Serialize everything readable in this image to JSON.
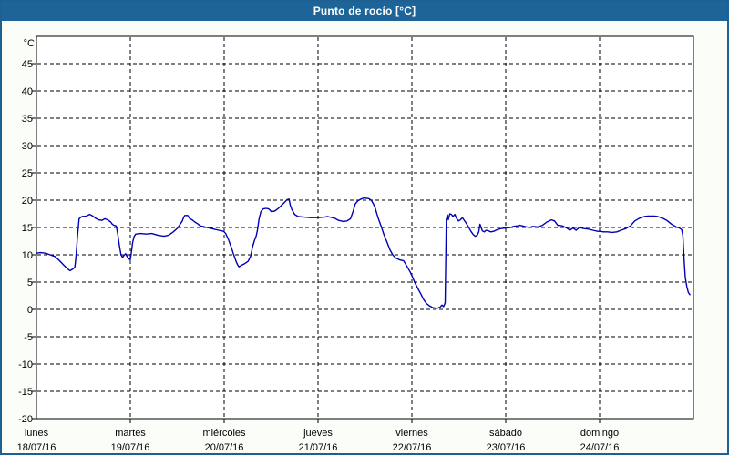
{
  "window": {
    "title": "Punto de rocío [°C]"
  },
  "colors": {
    "titlebar_bg": "#1d6598",
    "titlebar_text": "#ffffff",
    "window_border": "#1e6090",
    "window_bg": "#fbfdf9",
    "plot_bg": "#ffffff",
    "axis_color": "#000000",
    "grid_color": "#000000",
    "series_color": "#0000b4"
  },
  "chart_data": {
    "type": "line",
    "title": "Punto de rocío [°C]",
    "ylabel": "°C",
    "ylim": [
      -20,
      50
    ],
    "y_tick_step": 5,
    "y_tick_labels": [
      "45",
      "40",
      "35",
      "30",
      "25",
      "20",
      "15",
      "10",
      "5",
      "0",
      "-5",
      "-10",
      "-15",
      "-20"
    ],
    "grid": "dashed horizontal every 5°C, dashed vertical at each day boundary",
    "legend": "none",
    "x_axis": {
      "unit": "hours from lunes 18/07/16 00:00",
      "range": [
        0,
        168
      ],
      "hours_per_day": 24,
      "days": [
        {
          "name": "lunes",
          "date": "18/07/16"
        },
        {
          "name": "martes",
          "date": "19/07/16"
        },
        {
          "name": "miércoles",
          "date": "20/07/16"
        },
        {
          "name": "jueves",
          "date": "21/07/16"
        },
        {
          "name": "viernes",
          "date": "22/07/16"
        },
        {
          "name": "sábado",
          "date": "23/07/16"
        },
        {
          "name": "domingo",
          "date": "24/07/16"
        }
      ]
    },
    "series": [
      {
        "name": "Punto de rocío",
        "unit": "°C",
        "color": "#0000b4",
        "points": [
          [
            0,
            10.3
          ],
          [
            1,
            10.4
          ],
          [
            2.3,
            10.3
          ],
          [
            3.5,
            10.0
          ],
          [
            4.7,
            9.7
          ],
          [
            5.8,
            9.0
          ],
          [
            7,
            8.1
          ],
          [
            8.2,
            7.3
          ],
          [
            8.6,
            7.1
          ],
          [
            9.3,
            7.4
          ],
          [
            9.8,
            7.7
          ],
          [
            10.1,
            9.5
          ],
          [
            10.5,
            13.5
          ],
          [
            10.9,
            16.6
          ],
          [
            11.6,
            17.0
          ],
          [
            12.8,
            17.1
          ],
          [
            13.6,
            17.4
          ],
          [
            14.4,
            17.1
          ],
          [
            15.1,
            16.7
          ],
          [
            15.9,
            16.4
          ],
          [
            16.7,
            16.3
          ],
          [
            17.5,
            16.6
          ],
          [
            18.2,
            16.4
          ],
          [
            19,
            16.0
          ],
          [
            19.4,
            15.6
          ],
          [
            19.8,
            15.4
          ],
          [
            20.4,
            15.3
          ],
          [
            20.8,
            13.7
          ],
          [
            21.2,
            11.7
          ],
          [
            21.6,
            10.1
          ],
          [
            22,
            9.5
          ],
          [
            22.4,
            9.9
          ],
          [
            22.8,
            10.2
          ],
          [
            23.1,
            9.8
          ],
          [
            23.5,
            9.3
          ],
          [
            24,
            9.1
          ],
          [
            24.3,
            10.6
          ],
          [
            24.6,
            12.3
          ],
          [
            25,
            13.4
          ],
          [
            25.4,
            13.8
          ],
          [
            26.6,
            13.9
          ],
          [
            28,
            13.8
          ],
          [
            29.5,
            13.9
          ],
          [
            31,
            13.6
          ],
          [
            32.6,
            13.4
          ],
          [
            33.8,
            13.6
          ],
          [
            35,
            14.2
          ],
          [
            36.1,
            14.9
          ],
          [
            37.3,
            16.2
          ],
          [
            37.6,
            16.8
          ],
          [
            37.9,
            17.2
          ],
          [
            38.7,
            17.2
          ],
          [
            39.1,
            16.7
          ],
          [
            39.8,
            16.4
          ],
          [
            40.5,
            16.0
          ],
          [
            41.2,
            15.7
          ],
          [
            41.9,
            15.3
          ],
          [
            43.1,
            15.1
          ],
          [
            44.3,
            14.9
          ],
          [
            45.4,
            14.7
          ],
          [
            46.6,
            14.5
          ],
          [
            47.8,
            14.3
          ],
          [
            48,
            14.2
          ],
          [
            48.4,
            13.9
          ],
          [
            48.7,
            13.4
          ],
          [
            49.1,
            12.8
          ],
          [
            49.5,
            12.0
          ],
          [
            49.9,
            11.2
          ],
          [
            50.3,
            10.3
          ],
          [
            50.7,
            9.5
          ],
          [
            51.1,
            8.7
          ],
          [
            51.5,
            8.1
          ],
          [
            51.8,
            7.8
          ],
          [
            52.5,
            8.1
          ],
          [
            53.3,
            8.4
          ],
          [
            54.1,
            8.8
          ],
          [
            54.8,
            9.8
          ],
          [
            55.2,
            11.3
          ],
          [
            55.7,
            12.5
          ],
          [
            56.2,
            13.5
          ],
          [
            56.5,
            14.5
          ],
          [
            56.9,
            16.5
          ],
          [
            57.4,
            17.9
          ],
          [
            58,
            18.4
          ],
          [
            58.7,
            18.5
          ],
          [
            59.4,
            18.4
          ],
          [
            60.1,
            17.9
          ],
          [
            60.9,
            18.0
          ],
          [
            61.7,
            18.4
          ],
          [
            62.9,
            19.2
          ],
          [
            64.1,
            20.1
          ],
          [
            64.6,
            20.2
          ],
          [
            64.9,
            19.1
          ],
          [
            65.3,
            18.3
          ],
          [
            66,
            17.4
          ],
          [
            66.9,
            17.0
          ],
          [
            68.4,
            16.9
          ],
          [
            70,
            16.8
          ],
          [
            71.5,
            16.8
          ],
          [
            72,
            16.8
          ],
          [
            73.6,
            16.9
          ],
          [
            74.5,
            17.0
          ],
          [
            76.2,
            16.7
          ],
          [
            77.3,
            16.3
          ],
          [
            78.5,
            16.1
          ],
          [
            79.4,
            16.2
          ],
          [
            80.3,
            16.6
          ],
          [
            81,
            18.0
          ],
          [
            81.5,
            19.3
          ],
          [
            82.2,
            19.9
          ],
          [
            83,
            20.2
          ],
          [
            83.7,
            20.4
          ],
          [
            84.9,
            20.3
          ],
          [
            85.6,
            20.0
          ],
          [
            86.1,
            19.4
          ],
          [
            86.6,
            18.6
          ],
          [
            87,
            17.6
          ],
          [
            87.5,
            16.5
          ],
          [
            88.2,
            15.1
          ],
          [
            88.9,
            13.6
          ],
          [
            89.6,
            12.4
          ],
          [
            90.4,
            10.9
          ],
          [
            91.1,
            10.0
          ],
          [
            91.9,
            9.4
          ],
          [
            92.8,
            9.1
          ],
          [
            93.9,
            8.9
          ],
          [
            94.8,
            7.8
          ],
          [
            95.6,
            6.8
          ],
          [
            96,
            6.2
          ],
          [
            96.7,
            5.0
          ],
          [
            97.4,
            4.0
          ],
          [
            98.3,
            2.8
          ],
          [
            99,
            1.8
          ],
          [
            99.7,
            1.1
          ],
          [
            100.6,
            0.6
          ],
          [
            101.4,
            0.3
          ],
          [
            102.5,
            0.2
          ],
          [
            103.2,
            0.4
          ],
          [
            103.7,
            0.8
          ],
          [
            104.1,
            0.5
          ],
          [
            104.5,
            1.2
          ],
          [
            104.8,
            16.5
          ],
          [
            105.1,
            17.3
          ],
          [
            105.3,
            16.4
          ],
          [
            105.7,
            17.5
          ],
          [
            106.1,
            17.4
          ],
          [
            106.5,
            17.0
          ],
          [
            107,
            17.4
          ],
          [
            107.4,
            16.7
          ],
          [
            107.9,
            16.2
          ],
          [
            108.4,
            16.4
          ],
          [
            108.9,
            16.8
          ],
          [
            109.3,
            16.4
          ],
          [
            109.8,
            15.9
          ],
          [
            110.3,
            15.3
          ],
          [
            110.7,
            14.8
          ],
          [
            111.2,
            14.2
          ],
          [
            111.7,
            13.7
          ],
          [
            112.2,
            13.4
          ],
          [
            112.7,
            13.6
          ],
          [
            113.1,
            14.2
          ],
          [
            113.4,
            15.6
          ],
          [
            113.7,
            15.0
          ],
          [
            114,
            14.4
          ],
          [
            114.5,
            14.2
          ],
          [
            115,
            14.5
          ],
          [
            115.5,
            14.4
          ],
          [
            116.2,
            14.2
          ],
          [
            116.9,
            14.3
          ],
          [
            117.8,
            14.6
          ],
          [
            118.8,
            14.8
          ],
          [
            120,
            14.9
          ],
          [
            121.2,
            15.0
          ],
          [
            122,
            15.2
          ],
          [
            123,
            15.3
          ],
          [
            123.6,
            15.4
          ],
          [
            124.8,
            15.2
          ],
          [
            125.9,
            15.0
          ],
          [
            127,
            15.2
          ],
          [
            128.2,
            15.1
          ],
          [
            129.4,
            15.4
          ],
          [
            130.5,
            16.0
          ],
          [
            131.7,
            16.4
          ],
          [
            132.5,
            16.2
          ],
          [
            133.3,
            15.4
          ],
          [
            134.5,
            15.3
          ],
          [
            135.6,
            14.9
          ],
          [
            136.4,
            14.5
          ],
          [
            137.2,
            14.9
          ],
          [
            138,
            14.5
          ],
          [
            138.8,
            15.0
          ],
          [
            140,
            14.8
          ],
          [
            141.2,
            14.7
          ],
          [
            142.3,
            14.5
          ],
          [
            143.5,
            14.3
          ],
          [
            144,
            14.3
          ],
          [
            145,
            14.2
          ],
          [
            146,
            14.2
          ],
          [
            147.2,
            14.1
          ],
          [
            148.4,
            14.2
          ],
          [
            149.5,
            14.5
          ],
          [
            150.7,
            14.8
          ],
          [
            151.9,
            15.3
          ],
          [
            153,
            16.2
          ],
          [
            154.2,
            16.7
          ],
          [
            155.4,
            17.0
          ],
          [
            156.4,
            17.1
          ],
          [
            158,
            17.1
          ],
          [
            158.9,
            17.0
          ],
          [
            160.1,
            16.7
          ],
          [
            161.2,
            16.3
          ],
          [
            162.4,
            15.6
          ],
          [
            163.6,
            15.1
          ],
          [
            164.4,
            14.9
          ],
          [
            165,
            14.6
          ],
          [
            165.3,
            13.5
          ],
          [
            165.6,
            9.2
          ],
          [
            165.9,
            5.9
          ],
          [
            166.3,
            4.2
          ],
          [
            166.7,
            3.1
          ],
          [
            167.1,
            2.7
          ]
        ]
      }
    ]
  }
}
